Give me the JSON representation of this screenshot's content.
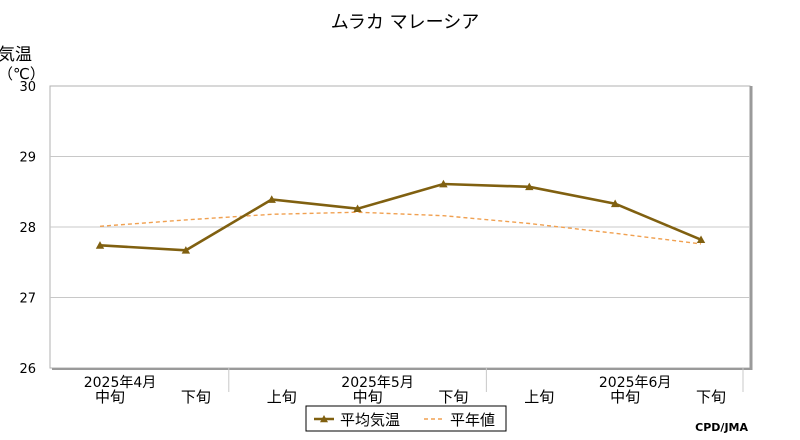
{
  "chart_data": {
    "type": "line",
    "title": "ムラカ マレーシア",
    "ylabel": "気温",
    "yunit": "（℃）",
    "ylim": [
      26,
      30
    ],
    "yticks": [
      "30",
      "29",
      "28",
      "27",
      "26"
    ],
    "grid": true,
    "categories": [
      "中旬",
      "下旬",
      "上旬",
      "中旬",
      "下旬",
      "上旬",
      "中旬",
      "下旬"
    ],
    "month_labels": [
      {
        "label": "2025年4月",
        "at": 0
      },
      {
        "label": "2025年5月",
        "at": 3
      },
      {
        "label": "2025年6月",
        "at": 6
      }
    ],
    "series": [
      {
        "name": "平均気温",
        "color": "#806010",
        "style": "solid-triangle-markers",
        "values": [
          27.74,
          27.67,
          28.39,
          28.26,
          28.61,
          28.57,
          28.33,
          27.82
        ]
      },
      {
        "name": "平年値",
        "color": "#f0a050",
        "style": "dashed",
        "values": [
          28.01,
          28.1,
          28.18,
          28.21,
          28.16,
          28.05,
          27.91,
          27.76
        ]
      }
    ],
    "legend_position": "bottom-center",
    "credit": "CPD/JMA"
  }
}
